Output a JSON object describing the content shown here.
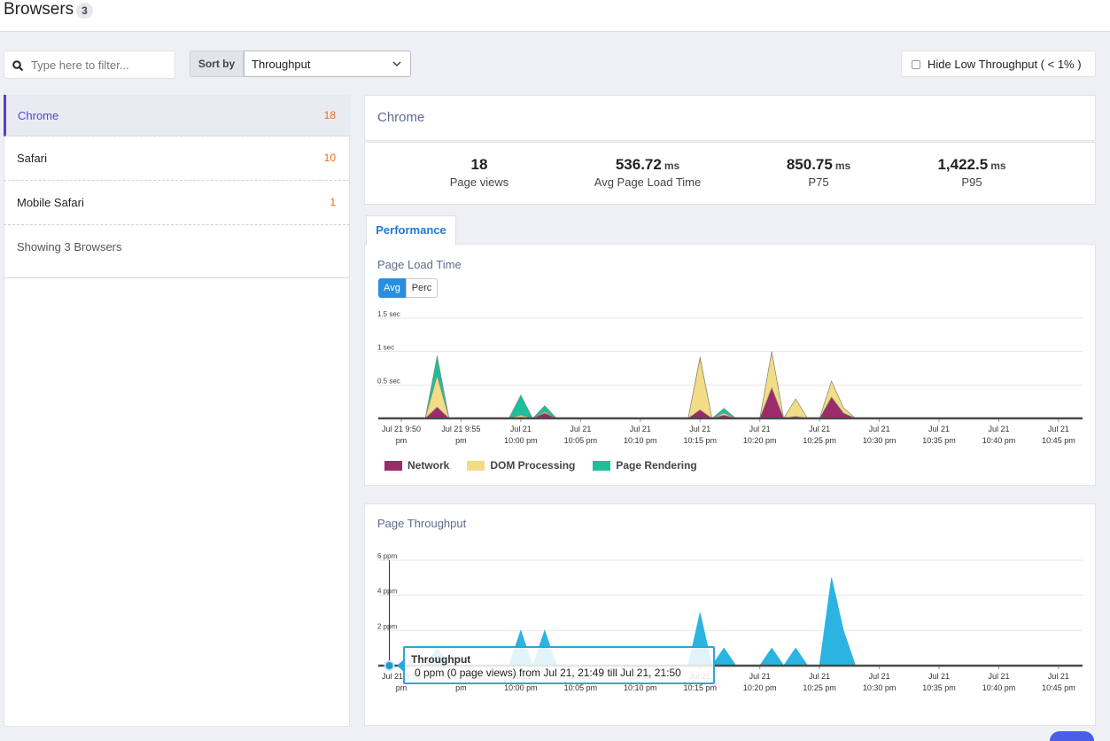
{
  "header": {
    "title": "Browsers",
    "count": "3"
  },
  "toolbar": {
    "filter_placeholder": "Type here to filter...",
    "sort_label": "Sort by",
    "sort_value": "Throughput",
    "hide_low": "Hide Low Throughput ( < 1% )"
  },
  "browsers": [
    {
      "name": "Chrome",
      "count": 18
    },
    {
      "name": "Safari",
      "count": 10
    },
    {
      "name": "Mobile Safari",
      "count": 1
    }
  ],
  "browsers_footer": "Showing 3 Browsers",
  "detail": {
    "title": "Chrome",
    "stats": [
      {
        "value": "18",
        "label": "Page views"
      },
      {
        "value": "536.72",
        "unit": "ms",
        "label": "Avg Page Load Time"
      },
      {
        "value": "850.75",
        "unit": "ms",
        "label": "P75"
      },
      {
        "value": "1,422.5",
        "unit": "ms",
        "label": "P95"
      }
    ],
    "tab": "Performance"
  },
  "chart_data": [
    {
      "type": "stacked_area",
      "title": "Page Load Time",
      "buttons": [
        "Avg",
        "Perc"
      ],
      "x": [
        "Jul 21, 21:49",
        "Jul 21, 21:50",
        "Jul 21, 21:51",
        "Jul 21, 21:52",
        "Jul 21, 21:53",
        "Jul 21, 21:54",
        "Jul 21, 21:55",
        "Jul 21, 21:56",
        "Jul 21, 21:57",
        "Jul 21, 21:58",
        "Jul 21, 21:59",
        "Jul 21, 22:00",
        "Jul 21, 22:01",
        "Jul 21, 22:02",
        "Jul 21, 22:03",
        "Jul 21, 22:04",
        "Jul 21, 22:05",
        "Jul 21, 22:06",
        "Jul 21, 22:07",
        "Jul 21, 22:08",
        "Jul 21, 22:09",
        "Jul 21, 22:10",
        "Jul 21, 22:11",
        "Jul 21, 22:12",
        "Jul 21, 22:13",
        "Jul 21, 22:14",
        "Jul 21, 22:15",
        "Jul 21, 22:16",
        "Jul 21, 22:17",
        "Jul 21, 22:18",
        "Jul 21, 22:19",
        "Jul 21, 22:20",
        "Jul 21, 22:21",
        "Jul 21, 22:22",
        "Jul 21, 22:23",
        "Jul 21, 22:24",
        "Jul 21, 22:25",
        "Jul 21, 22:26",
        "Jul 21, 22:27",
        "Jul 21, 22:28",
        "Jul 21, 22:29",
        "Jul 21, 22:30",
        "Jul 21, 22:31",
        "Jul 21, 22:32",
        "Jul 21, 22:33",
        "Jul 21, 22:34",
        "Jul 21, 22:35",
        "Jul 21, 22:36",
        "Jul 21, 22:37",
        "Jul 21, 22:38",
        "Jul 21, 22:39",
        "Jul 21, 22:40",
        "Jul 21, 22:41",
        "Jul 21, 22:42",
        "Jul 21, 22:43",
        "Jul 21, 22:44",
        "Jul 21, 22:45",
        "Jul 21, 22:46",
        "Jul 21, 22:47"
      ],
      "series": [
        {
          "name": "Network",
          "color": "#9c2b6b",
          "values": [
            0,
            0,
            0,
            0,
            0.17,
            0,
            0,
            0,
            0,
            0,
            0,
            0.02,
            0,
            0.08,
            0,
            0,
            0,
            0,
            0,
            0,
            0,
            0,
            0,
            0,
            0,
            0,
            0.13,
            0,
            0.05,
            0,
            0,
            0,
            0.46,
            0,
            0.03,
            0,
            0,
            0.32,
            0.08,
            0,
            0,
            0,
            0,
            0,
            0,
            0,
            0,
            0,
            0,
            0,
            0,
            0,
            0,
            0,
            0,
            0,
            0,
            0,
            0
          ]
        },
        {
          "name": "DOM Processing",
          "color": "#f2dc85",
          "values": [
            0,
            0,
            0,
            0,
            0.47,
            0,
            0,
            0,
            0,
            0,
            0,
            0.03,
            0,
            0.02,
            0,
            0,
            0,
            0,
            0,
            0,
            0,
            0,
            0,
            0,
            0,
            0,
            0.77,
            0,
            0.03,
            0,
            0,
            0,
            0.54,
            0,
            0.26,
            0,
            0,
            0.24,
            0.08,
            0,
            0,
            0,
            0,
            0,
            0,
            0,
            0,
            0,
            0,
            0,
            0,
            0,
            0,
            0,
            0,
            0,
            0,
            0,
            0
          ]
        },
        {
          "name": "Page Rendering",
          "color": "#1dbf9b",
          "values": [
            0,
            0,
            0,
            0,
            0.3,
            0,
            0,
            0,
            0,
            0,
            0,
            0.3,
            0,
            0.09,
            0,
            0,
            0,
            0,
            0,
            0,
            0,
            0,
            0,
            0,
            0,
            0,
            0.02,
            0,
            0.07,
            0,
            0,
            0,
            0,
            0,
            0,
            0,
            0,
            0,
            0,
            0,
            0,
            0,
            0,
            0,
            0,
            0,
            0,
            0,
            0,
            0,
            0,
            0,
            0,
            0,
            0,
            0,
            0,
            0,
            0
          ]
        }
      ],
      "ylim": [
        0,
        1.5
      ],
      "yticks": [
        {
          "value": 0.5,
          "label": "0.5 sec"
        },
        {
          "value": 1,
          "label": "1 sec"
        },
        {
          "value": 1.5,
          "label": "1.5 sec"
        }
      ],
      "xticks": [
        {
          "value": "Jul 21, 21:50",
          "label": "Jul 21 9:50 pm"
        },
        {
          "value": "Jul 21, 21:55",
          "label": "Jul 21 9:55 pm"
        },
        {
          "value": "Jul 21, 22:00",
          "label": "Jul 21 10:00 pm"
        },
        {
          "value": "Jul 21, 22:05",
          "label": "Jul 21 10:05 pm"
        },
        {
          "value": "Jul 21, 22:10",
          "label": "Jul 21 10:10 pm"
        },
        {
          "value": "Jul 21, 22:15",
          "label": "Jul 21 10:15 pm"
        },
        {
          "value": "Jul 21, 22:20",
          "label": "Jul 21 10:20 pm"
        },
        {
          "value": "Jul 21, 22:25",
          "label": "Jul 21 10:25 pm"
        },
        {
          "value": "Jul 21, 22:30",
          "label": "Jul 21 10:30 pm"
        },
        {
          "value": "Jul 21, 22:35",
          "label": "Jul 21 10:35 pm"
        },
        {
          "value": "Jul 21, 22:40",
          "label": "Jul 21 10:40 pm"
        },
        {
          "value": "Jul 21, 22:45",
          "label": "Jul 21 10:45 pm"
        }
      ],
      "grid": true,
      "legend": "bottom"
    },
    {
      "type": "area",
      "title": "Page Throughput",
      "x": [
        "Jul 21, 21:49",
        "Jul 21, 21:50",
        "Jul 21, 21:51",
        "Jul 21, 21:52",
        "Jul 21, 21:53",
        "Jul 21, 21:54",
        "Jul 21, 21:55",
        "Jul 21, 21:56",
        "Jul 21, 21:57",
        "Jul 21, 21:58",
        "Jul 21, 21:59",
        "Jul 21, 22:00",
        "Jul 21, 22:01",
        "Jul 21, 22:02",
        "Jul 21, 22:03",
        "Jul 21, 22:04",
        "Jul 21, 22:05",
        "Jul 21, 22:06",
        "Jul 21, 22:07",
        "Jul 21, 22:08",
        "Jul 21, 22:09",
        "Jul 21, 22:10",
        "Jul 21, 22:11",
        "Jul 21, 22:12",
        "Jul 21, 22:13",
        "Jul 21, 22:14",
        "Jul 21, 22:15",
        "Jul 21, 22:16",
        "Jul 21, 22:17",
        "Jul 21, 22:18",
        "Jul 21, 22:19",
        "Jul 21, 22:20",
        "Jul 21, 22:21",
        "Jul 21, 22:22",
        "Jul 21, 22:23",
        "Jul 21, 22:24",
        "Jul 21, 22:25",
        "Jul 21, 22:26",
        "Jul 21, 22:27",
        "Jul 21, 22:28",
        "Jul 21, 22:29",
        "Jul 21, 22:30",
        "Jul 21, 22:31",
        "Jul 21, 22:32",
        "Jul 21, 22:33",
        "Jul 21, 22:34",
        "Jul 21, 22:35",
        "Jul 21, 22:36",
        "Jul 21, 22:37",
        "Jul 21, 22:38",
        "Jul 21, 22:39",
        "Jul 21, 22:40",
        "Jul 21, 22:41",
        "Jul 21, 22:42",
        "Jul 21, 22:43",
        "Jul 21, 22:44",
        "Jul 21, 22:45",
        "Jul 21, 22:46",
        "Jul 21, 22:47"
      ],
      "series": [
        {
          "name": "Throughput",
          "color": "#2bb3e2",
          "values": [
            0,
            0,
            0,
            0,
            1,
            0,
            0,
            0,
            0,
            0,
            0,
            2,
            0,
            2,
            0,
            0,
            0,
            0,
            0,
            0,
            0,
            0,
            0,
            0,
            0,
            0,
            3,
            0,
            1,
            0,
            0,
            0,
            1,
            0,
            1,
            0,
            0,
            5,
            2,
            0,
            0,
            0,
            0,
            0,
            0,
            0,
            0,
            0,
            0,
            0,
            0,
            0,
            0,
            0,
            0,
            0,
            0,
            0,
            0
          ]
        }
      ],
      "ylim": [
        0,
        6
      ],
      "yticks": [
        {
          "value": 2,
          "label": "2 ppm"
        },
        {
          "value": 4,
          "label": "4 ppm"
        },
        {
          "value": 6,
          "label": "6 ppm"
        }
      ],
      "xticks": [
        {
          "value": "Jul 21, 21:50",
          "label": "Jul 21 9:50 pm"
        },
        {
          "value": "Jul 21, 21:55",
          "label": "Jul 21 9:55 pm"
        },
        {
          "value": "Jul 21, 22:00",
          "label": "Jul 21 10:00 pm"
        },
        {
          "value": "Jul 21, 22:05",
          "label": "Jul 21 10:05 pm"
        },
        {
          "value": "Jul 21, 22:10",
          "label": "Jul 21 10:10 pm"
        },
        {
          "value": "Jul 21, 22:15",
          "label": "Jul 21 10:15 pm"
        },
        {
          "value": "Jul 21, 22:20",
          "label": "Jul 21 10:20 pm"
        },
        {
          "value": "Jul 21, 22:25",
          "label": "Jul 21 10:25 pm"
        },
        {
          "value": "Jul 21, 22:30",
          "label": "Jul 21 10:30 pm"
        },
        {
          "value": "Jul 21, 22:35",
          "label": "Jul 21 10:35 pm"
        },
        {
          "value": "Jul 21, 22:40",
          "label": "Jul 21 10:40 pm"
        },
        {
          "value": "Jul 21, 22:45",
          "label": "Jul 21 10:45 pm"
        }
      ],
      "grid": true,
      "tooltip": {
        "text": "0 ppm (0 page views) from Jul 21, 21:49 till Jul 21, 21:50"
      }
    }
  ]
}
